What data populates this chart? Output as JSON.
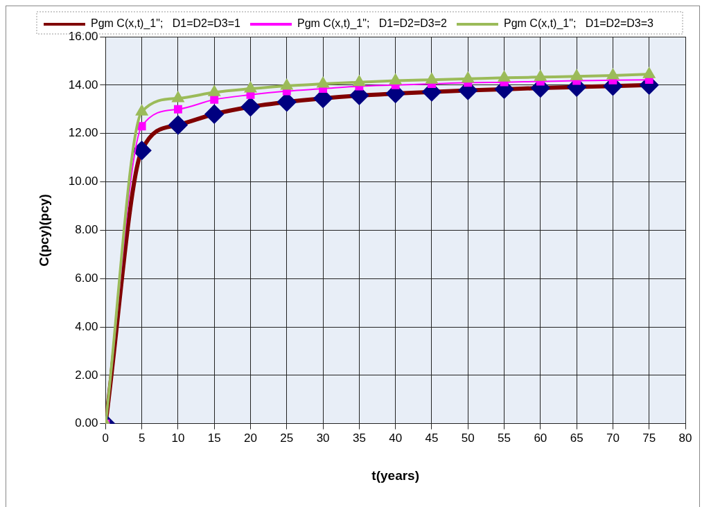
{
  "chart_data": {
    "type": "line",
    "xlabel": "t(years)",
    "ylabel": "C(pcy)(pcy)",
    "x": [
      0,
      5,
      10,
      15,
      20,
      25,
      30,
      35,
      40,
      45,
      50,
      55,
      60,
      65,
      70,
      75
    ],
    "series": [
      {
        "name": "Pgm C(x,t)_1\";   D1=D2=D3=1",
        "color": "#800000",
        "marker": "diamond",
        "colors": [
          "#000080",
          "#000080",
          "#000080",
          "#000080",
          "#000080",
          "#000080",
          "#000080",
          "#000080",
          "#000080",
          "#000080",
          "#000080",
          "#000080",
          "#000080",
          "#000080",
          "#000080",
          "#000080"
        ],
        "values": [
          0,
          11.3,
          12.35,
          12.8,
          13.1,
          13.3,
          13.45,
          13.57,
          13.65,
          13.72,
          13.78,
          13.83,
          13.88,
          13.92,
          13.96,
          14.0
        ]
      },
      {
        "name": "Pgm C(x,t)_1\";   D1=D2=D3=2",
        "color": "#ff00ff",
        "marker": "square",
        "values": [
          0,
          12.3,
          13.0,
          13.4,
          13.6,
          13.75,
          13.85,
          13.95,
          14.0,
          14.05,
          14.1,
          14.12,
          14.15,
          14.18,
          14.2,
          14.22
        ]
      },
      {
        "name": "Pgm C(x,t)_1\";   D1=D2=D3=3",
        "color": "#9bbb59",
        "marker": "triangle",
        "values": [
          0,
          12.9,
          13.45,
          13.7,
          13.85,
          13.97,
          14.05,
          14.12,
          14.18,
          14.22,
          14.26,
          14.3,
          14.33,
          14.36,
          14.4,
          14.45
        ]
      }
    ],
    "xlim": [
      0,
      80
    ],
    "xticks": [
      0,
      5,
      10,
      15,
      20,
      25,
      30,
      35,
      40,
      45,
      50,
      55,
      60,
      65,
      70,
      75,
      80
    ],
    "ylim": [
      0,
      16
    ],
    "yticks": [
      {
        "value": 0,
        "label": "0.00"
      },
      {
        "value": 2,
        "label": "2.00"
      },
      {
        "value": 4,
        "label": "4.00"
      },
      {
        "value": 6,
        "label": "6.00"
      },
      {
        "value": 8,
        "label": "8.00"
      },
      {
        "value": 10,
        "label": "10.00"
      },
      {
        "value": 12,
        "label": "12.00"
      },
      {
        "value": 14,
        "label": "14.00"
      },
      {
        "value": 16,
        "label": "16.00"
      }
    ],
    "grid": true,
    "legend": "top",
    "line_style": "solid"
  }
}
